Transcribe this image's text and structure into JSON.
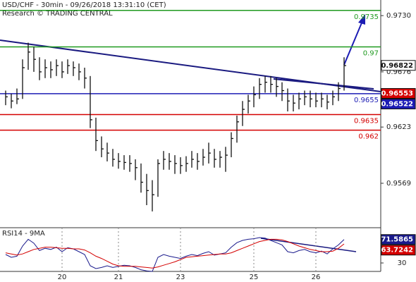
{
  "chart_data": [
    {
      "type": "ohlc",
      "title": "USD/CHF - 30min - 09/26/2018 13:31:10 (CET)",
      "subtitle": "Research © TRADING CENTRAL",
      "categories": [
        null,
        null,
        null,
        null,
        null,
        null,
        null,
        null,
        null,
        null,
        "20",
        null,
        null,
        null,
        null,
        null,
        null,
        null,
        null,
        null,
        "21",
        null,
        null,
        null,
        null,
        null,
        null,
        null,
        null,
        null,
        null,
        "23",
        null,
        null,
        null,
        null,
        null,
        null,
        null,
        null,
        null,
        null,
        null,
        null,
        "25",
        null,
        null,
        null,
        null,
        null,
        null,
        null,
        null,
        null,
        null,
        "26",
        null,
        null,
        null,
        null,
        null
      ],
      "high": [
        0.9658,
        0.9655,
        0.966,
        0.9688,
        0.9704,
        0.97,
        0.969,
        0.9688,
        0.9686,
        0.9688,
        0.9686,
        0.9688,
        0.9686,
        0.9684,
        0.968,
        0.9672,
        0.9632,
        0.9614,
        0.9608,
        0.9602,
        0.9598,
        0.9596,
        0.9596,
        0.9592,
        0.9588,
        0.9578,
        0.9572,
        0.9592,
        0.96,
        0.9598,
        0.9596,
        0.9594,
        0.9595,
        0.96,
        0.9598,
        0.9602,
        0.9608,
        0.9602,
        0.96,
        0.9604,
        0.9618,
        0.9634,
        0.9648,
        0.9654,
        0.9662,
        0.967,
        0.9672,
        0.9672,
        0.967,
        0.9666,
        0.966,
        0.9654,
        0.9656,
        0.9658,
        0.9658,
        0.9656,
        0.9656,
        0.9654,
        0.9658,
        0.9666,
        0.969
      ],
      "low": [
        0.9644,
        0.9641,
        0.9645,
        0.965,
        0.9678,
        0.9676,
        0.9668,
        0.967,
        0.967,
        0.9672,
        0.967,
        0.9674,
        0.9672,
        0.9668,
        0.966,
        0.9622,
        0.96,
        0.9594,
        0.959,
        0.9585,
        0.9583,
        0.9582,
        0.958,
        0.9572,
        0.956,
        0.9548,
        0.9542,
        0.9556,
        0.9582,
        0.9582,
        0.9578,
        0.9578,
        0.958,
        0.9584,
        0.9582,
        0.9586,
        0.9588,
        0.9584,
        0.9584,
        0.958,
        0.9594,
        0.9608,
        0.9624,
        0.9636,
        0.9642,
        0.965,
        0.9656,
        0.9656,
        0.9652,
        0.9648,
        0.9638,
        0.9638,
        0.964,
        0.9644,
        0.9642,
        0.9642,
        0.9642,
        0.964,
        0.9644,
        0.9648,
        0.9658
      ],
      "close": [
        0.9652,
        0.9648,
        0.965,
        0.968,
        0.9695,
        0.9688,
        0.9676,
        0.968,
        0.9678,
        0.9682,
        0.9676,
        0.9682,
        0.968,
        0.9676,
        0.967,
        0.963,
        0.961,
        0.9602,
        0.9598,
        0.9592,
        0.959,
        0.9589,
        0.9588,
        0.9584,
        0.957,
        0.9562,
        0.9558,
        0.9588,
        0.9592,
        0.959,
        0.9588,
        0.9586,
        0.9588,
        0.9592,
        0.959,
        0.9594,
        0.9598,
        0.9592,
        0.9594,
        0.9596,
        0.9612,
        0.9628,
        0.964,
        0.9648,
        0.9654,
        0.9664,
        0.9666,
        0.9664,
        0.9662,
        0.9658,
        0.9648,
        0.9646,
        0.965,
        0.9652,
        0.965,
        0.9648,
        0.965,
        0.9647,
        0.9652,
        0.966,
        0.9682
      ],
      "color": "#111111",
      "ylim": [
        0.9527,
        0.9745
      ],
      "yticks": [
        {
          "value": 0.973,
          "label": "0.9730"
        },
        0.9676,
        0.9623,
        0.9569
      ],
      "levels": [
        {
          "value": 0.9735,
          "color": "#1f9a1f"
        },
        {
          "value": 0.97,
          "color": "#1f9a1f"
        },
        {
          "value": 0.9655,
          "color": "#1c1cb4"
        },
        {
          "value": 0.9635,
          "color": "#d40000"
        },
        {
          "value": 0.962,
          "color": "#d40000"
        }
      ],
      "price_tags": [
        {
          "value": 0.96822,
          "color": "#ffffff"
        },
        {
          "value": 0.96553,
          "color": "#d40000"
        },
        {
          "value": 0.96522,
          "color": "#1c1cb4"
        }
      ]
    },
    {
      "type": "line",
      "title": "RSI14 - 9MA",
      "series": [
        {
          "name": "RSI14",
          "color": "#1a1a8c",
          "values": [
            45,
            40,
            42,
            60,
            72,
            65,
            52,
            56,
            54,
            58,
            50,
            57,
            55,
            50,
            45,
            25,
            20,
            22,
            25,
            22,
            24,
            26,
            25,
            22,
            18,
            16,
            15,
            40,
            45,
            42,
            40,
            38,
            42,
            45,
            43,
            47,
            50,
            44,
            46,
            48,
            58,
            66,
            70,
            72,
            73,
            75,
            74,
            70,
            66,
            62,
            50,
            48,
            52,
            54,
            50,
            48,
            51,
            46,
            55,
            62,
            71.5865
          ]
        },
        {
          "name": "9MA",
          "color": "#d40000",
          "values": [
            48,
            46,
            44,
            46,
            50,
            54,
            56,
            58,
            58,
            57,
            56,
            56,
            55,
            55,
            53,
            48,
            42,
            38,
            33,
            28,
            25,
            24,
            24,
            24,
            23,
            22,
            21,
            23,
            26,
            29,
            32,
            36,
            40,
            41,
            42,
            43,
            44,
            45,
            46,
            46,
            48,
            52,
            56,
            60,
            64,
            68,
            70,
            72,
            72,
            71,
            68,
            64,
            60,
            57,
            54,
            52,
            50,
            50,
            51,
            56,
            63.7242
          ]
        }
      ],
      "ylim": [
        15,
        90
      ],
      "yticks": [
        30
      ]
    }
  ]
}
